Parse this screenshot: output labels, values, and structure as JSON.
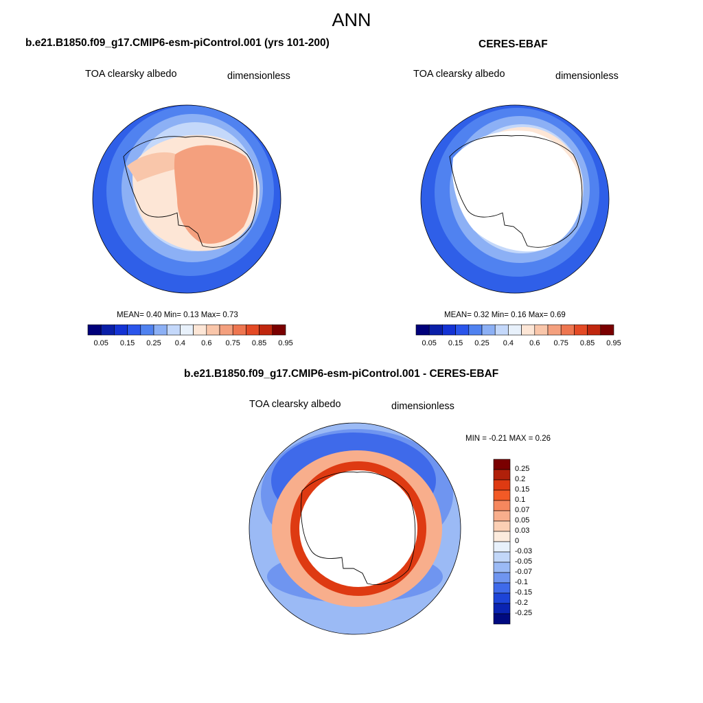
{
  "main_title": "ANN",
  "panels": [
    {
      "title": "b.e21.B1850.f09_g17.CMIP6-esm-piControl.001 (yrs 101-200)",
      "left_label": "TOA clearsky albedo",
      "right_label": "dimensionless",
      "stats": "MEAN=   0.40   Min=    0.13   Max=    0.73"
    },
    {
      "title": "CERES-EBAF",
      "left_label": "TOA clearsky albedo",
      "right_label": "dimensionless",
      "stats": "MEAN=   0.32   Min=    0.16   Max=    0.69"
    },
    {
      "title": "b.e21.B1850.f09_g17.CMIP6-esm-piControl.001 - CERES-EBAF",
      "left_label": "TOA clearsky albedo",
      "right_label": "dimensionless",
      "stats": "MIN =  -0.21 MAX =   0.26"
    }
  ],
  "colorbar_abs": {
    "tick_labels": [
      "0.05",
      "0.15",
      "0.25",
      "0.4",
      "0.6",
      "0.75",
      "0.85",
      "0.95"
    ],
    "colors": [
      "#00007a",
      "#0a1fa8",
      "#1433d4",
      "#2a55eb",
      "#5082f0",
      "#8cb0f5",
      "#c4d8fa",
      "#e8f1fb",
      "#fde6d6",
      "#f9c6aa",
      "#f4a07e",
      "#ee7650",
      "#e44a25",
      "#c0270e",
      "#7a0000"
    ]
  },
  "colorbar_diff": {
    "tick_labels": [
      "0.25",
      "0.2",
      "0.15",
      "0.1",
      "0.07",
      "0.05",
      "0.03",
      "0",
      "-0.03",
      "-0.05",
      "-0.07",
      "-0.1",
      "-0.15",
      "-0.2",
      "-0.25"
    ],
    "colors": [
      "#7a0000",
      "#b0200a",
      "#de3a12",
      "#f25a26",
      "#f5875e",
      "#f8ae8c",
      "#fbcfb4",
      "#fcebdd",
      "#e8f1fb",
      "#c2d7f8",
      "#9bbaf5",
      "#6f95f0",
      "#3f6aea",
      "#1d44d8",
      "#0a24b2",
      "#000a80"
    ]
  }
}
